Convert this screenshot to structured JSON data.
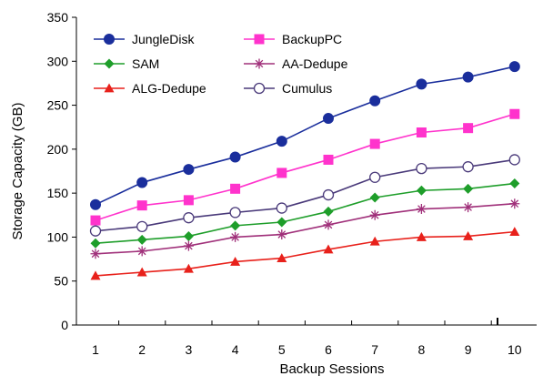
{
  "chart_data": {
    "type": "line",
    "title": "",
    "xlabel": "Backup Sessions",
    "ylabel": "Storage Capacity (GB)",
    "ylim": [
      0,
      350
    ],
    "yticks": [
      0,
      50,
      100,
      150,
      200,
      250,
      300,
      350
    ],
    "x": [
      1,
      2,
      3,
      4,
      5,
      6,
      7,
      8,
      9,
      10
    ],
    "grid": false,
    "legend": "top-left",
    "series": [
      {
        "name": "JungleDisk",
        "color": "#1a2e9c",
        "marker": "circle-filled",
        "values": [
          137,
          162,
          177,
          191,
          209,
          235,
          255,
          274,
          282,
          294
        ]
      },
      {
        "name": "BackupPC",
        "color": "#ff33cc",
        "marker": "square",
        "values": [
          119,
          136,
          142,
          155,
          173,
          188,
          206,
          219,
          224,
          240
        ]
      },
      {
        "name": "SAM",
        "color": "#1e9e2a",
        "marker": "diamond",
        "values": [
          93,
          97,
          101,
          113,
          117,
          129,
          145,
          153,
          155,
          161
        ]
      },
      {
        "name": "AA-Dedupe",
        "color": "#a0307a",
        "marker": "asterisk",
        "values": [
          81,
          84,
          90,
          100,
          103,
          114,
          125,
          132,
          134,
          138
        ]
      },
      {
        "name": "ALG-Dedupe",
        "color": "#e8211b",
        "marker": "triangle",
        "values": [
          56,
          60,
          64,
          72,
          76,
          86,
          95,
          100,
          101,
          106
        ]
      },
      {
        "name": "Cumulus",
        "color": "#4a3a7a",
        "marker": "circle-open",
        "values": [
          107,
          112,
          122,
          128,
          133,
          148,
          168,
          178,
          180,
          188
        ]
      }
    ]
  }
}
